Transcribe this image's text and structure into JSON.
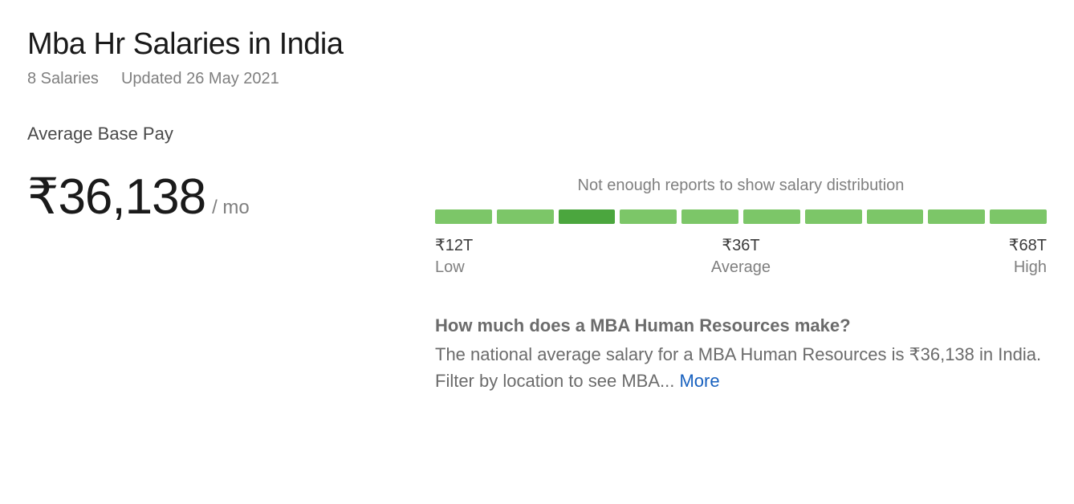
{
  "header": {
    "title": "Mba Hr Salaries in India",
    "salary_count": "8 Salaries",
    "updated": "Updated 26 May 2021"
  },
  "average": {
    "label": "Average Base Pay",
    "amount": "₹36,138",
    "unit": "/ mo"
  },
  "distribution": {
    "message": "Not enough reports to show salary distribution",
    "bar_count": 10,
    "bar_color": "#7cc668",
    "bar_highlight_color": "#4ba63e",
    "highlight_index": 2,
    "low": {
      "value": "₹12T",
      "label": "Low"
    },
    "average": {
      "value": "₹36T",
      "label": "Average"
    },
    "high": {
      "value": "₹68T",
      "label": "High"
    }
  },
  "description": {
    "title": "How much does a MBA Human Resources make?",
    "body": "The national average salary for a MBA Human Resources is ₹36,138 in India. Filter by location to see MBA...",
    "more_label": "More"
  }
}
